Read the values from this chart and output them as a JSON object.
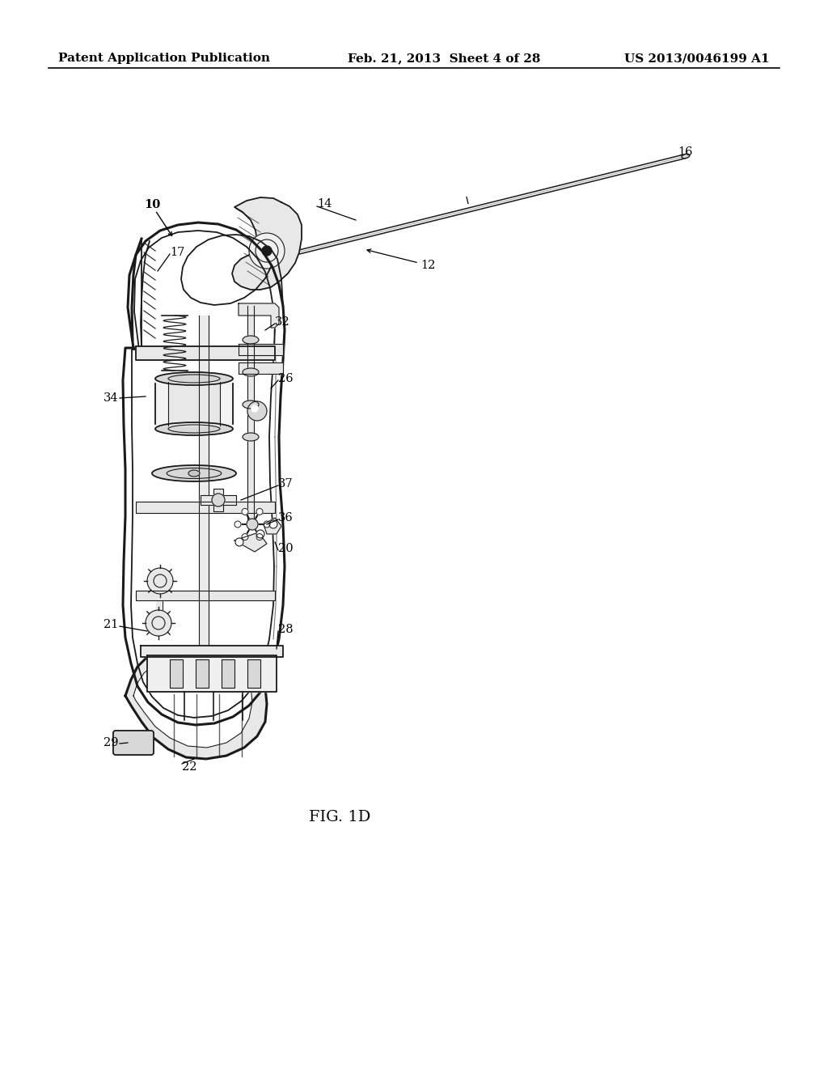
{
  "bg_color": "#ffffff",
  "header_left": "Patent Application Publication",
  "header_mid": "Feb. 21, 2013  Sheet 4 of 28",
  "header_right": "US 2013/0046199 A1",
  "fig_label": "FIG. 1D",
  "header_fontsize": 11,
  "fig_label_fontsize": 14,
  "label_fontsize": 10.5,
  "lc": "#1a1a1a",
  "lw_outer": 2.2,
  "lw_inner": 1.3,
  "lw_thin": 0.8,
  "shade1": "#c8c8c8",
  "shade2": "#d8d8d8",
  "shade3": "#e8e8e8",
  "shade4": "#f0f0f0"
}
